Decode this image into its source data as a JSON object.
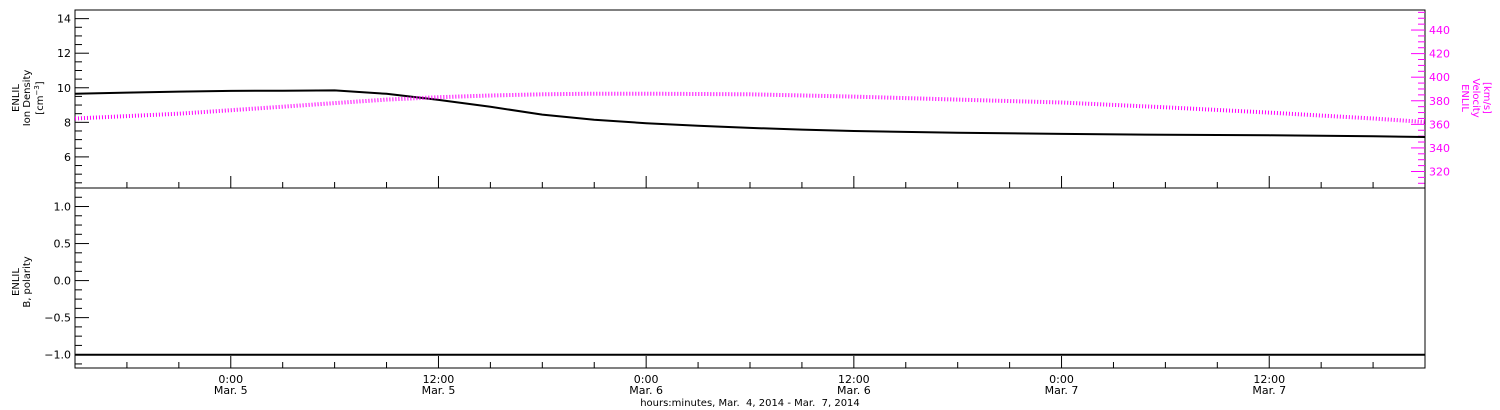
{
  "colors": {
    "density": "#000000",
    "velocity": "#ff00ff",
    "polarity": "#000000",
    "frame": "#000000"
  },
  "chart_data": [
    {
      "type": "line",
      "panel": "top",
      "xlabel": "",
      "x_range_hours": [
        -9,
        69
      ],
      "y_left": {
        "label_lines": [
          "ENLIL",
          "Ion Density"
        ],
        "unit_prefix": "[cm",
        "unit_exp": "−3",
        "unit_suffix": "]",
        "ylim": [
          4.2,
          14.5
        ],
        "ticks": [
          "6",
          "8",
          "10",
          "12",
          "14"
        ],
        "tick_values": [
          6,
          8,
          10,
          12,
          14
        ]
      },
      "y_right": {
        "label_lines": [
          "ENLIL",
          "Velocity",
          "[km/s]"
        ],
        "ylim": [
          306,
          457
        ],
        "ticks": [
          "320",
          "340",
          "360",
          "380",
          "400",
          "420",
          "440"
        ],
        "tick_values": [
          320,
          340,
          360,
          380,
          400,
          420,
          440
        ]
      },
      "series": [
        {
          "axis": "left",
          "color": "#000000",
          "x": [
            -9,
            -6,
            -3,
            0,
            3,
            6,
            9,
            12,
            15,
            18,
            21,
            24,
            27,
            30,
            33,
            36,
            42,
            48,
            54,
            60,
            66,
            69
          ],
          "y": [
            9.65,
            9.72,
            9.78,
            9.82,
            9.83,
            9.85,
            9.65,
            9.3,
            8.9,
            8.45,
            8.15,
            7.95,
            7.8,
            7.68,
            7.58,
            7.5,
            7.4,
            7.33,
            7.28,
            7.25,
            7.2,
            7.15
          ]
        },
        {
          "axis": "right",
          "color": "#ff00ff",
          "x": [
            -9,
            -6,
            -3,
            0,
            3,
            6,
            9,
            12,
            15,
            18,
            21,
            24,
            30,
            36,
            42,
            48,
            54,
            60,
            66,
            69
          ],
          "y": [
            365,
            367,
            369,
            372,
            375,
            378,
            381,
            383,
            384.5,
            385.5,
            386,
            386,
            385.5,
            383.5,
            381,
            378.5,
            374.5,
            370,
            365,
            362
          ]
        }
      ]
    },
    {
      "type": "line",
      "panel": "bottom",
      "x_range_hours": [
        -9,
        69
      ],
      "y_left": {
        "label_lines": [
          "ENLIL",
          "B, polarity"
        ],
        "ylim": [
          -1.18,
          1.25
        ],
        "ticks": [
          "−1.0",
          "−0.5",
          "0.0",
          "0.5",
          "1.0"
        ],
        "tick_values": [
          -1,
          -0.5,
          0,
          0.5,
          1
        ]
      },
      "series": [
        {
          "axis": "left",
          "color": "#000000",
          "x": [
            -9,
            69
          ],
          "y": [
            -1.0,
            -1.0
          ]
        }
      ],
      "x_ticks": [
        {
          "hours": 0,
          "time": "0:00",
          "date": "Mar. 5"
        },
        {
          "hours": 12,
          "time": "12:00",
          "date": "Mar. 5"
        },
        {
          "hours": 24,
          "time": "0:00",
          "date": "Mar. 6"
        },
        {
          "hours": 36,
          "time": "12:00",
          "date": "Mar. 6"
        },
        {
          "hours": 48,
          "time": "0:00",
          "date": "Mar. 7"
        },
        {
          "hours": 60,
          "time": "12:00",
          "date": "Mar. 7"
        }
      ],
      "xlabel": "hours:minutes, Mar.  4, 2014 - Mar.  7, 2014"
    }
  ]
}
